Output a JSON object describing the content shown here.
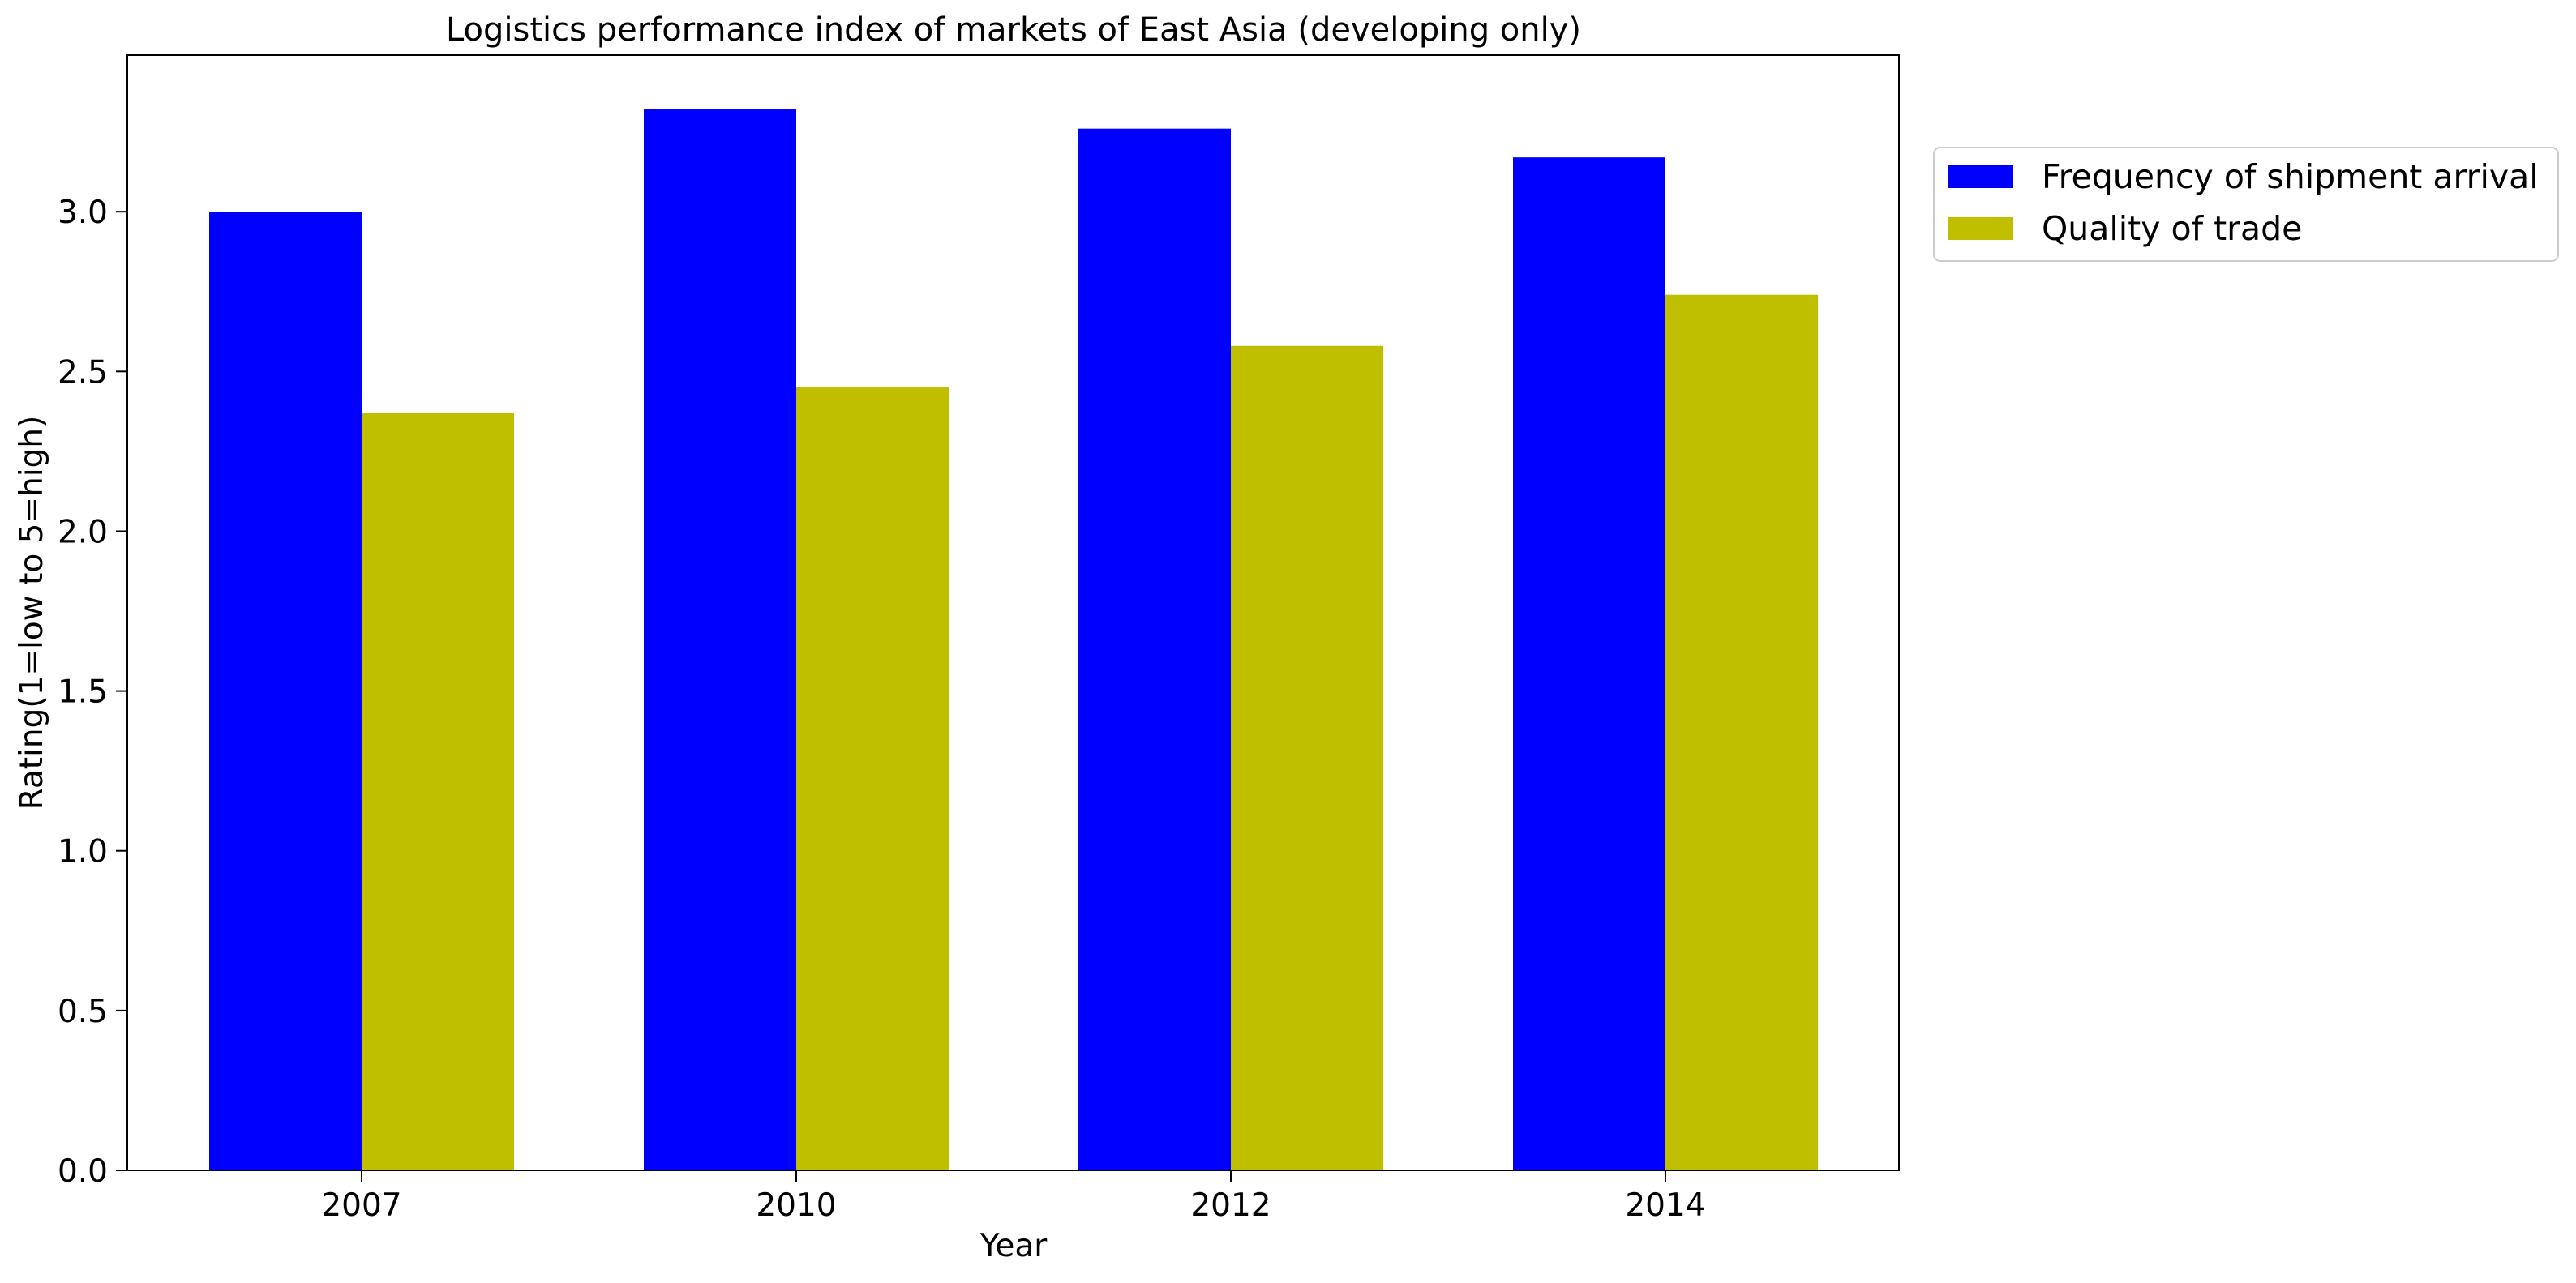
{
  "chart_data": {
    "type": "bar",
    "title": "Logistics performance index of markets of East Asia (developing only)",
    "xlabel": "Year",
    "ylabel": "Rating(1=low to 5=high)",
    "categories": [
      "2007",
      "2010",
      "2012",
      "2014"
    ],
    "series": [
      {
        "name": "Frequency of shipment arrival",
        "color": "#0000ff",
        "values": [
          3.0,
          3.32,
          3.26,
          3.17
        ]
      },
      {
        "name": "Quality of trade",
        "color": "#bfbf00",
        "values": [
          2.37,
          2.45,
          2.58,
          2.74
        ]
      }
    ],
    "ylim": [
      0,
      3.49
    ],
    "yticks": [
      "0.0",
      "0.5",
      "1.0",
      "1.5",
      "2.0",
      "2.5",
      "3.0"
    ],
    "grid": false,
    "legend_position": "outside-top-right"
  }
}
